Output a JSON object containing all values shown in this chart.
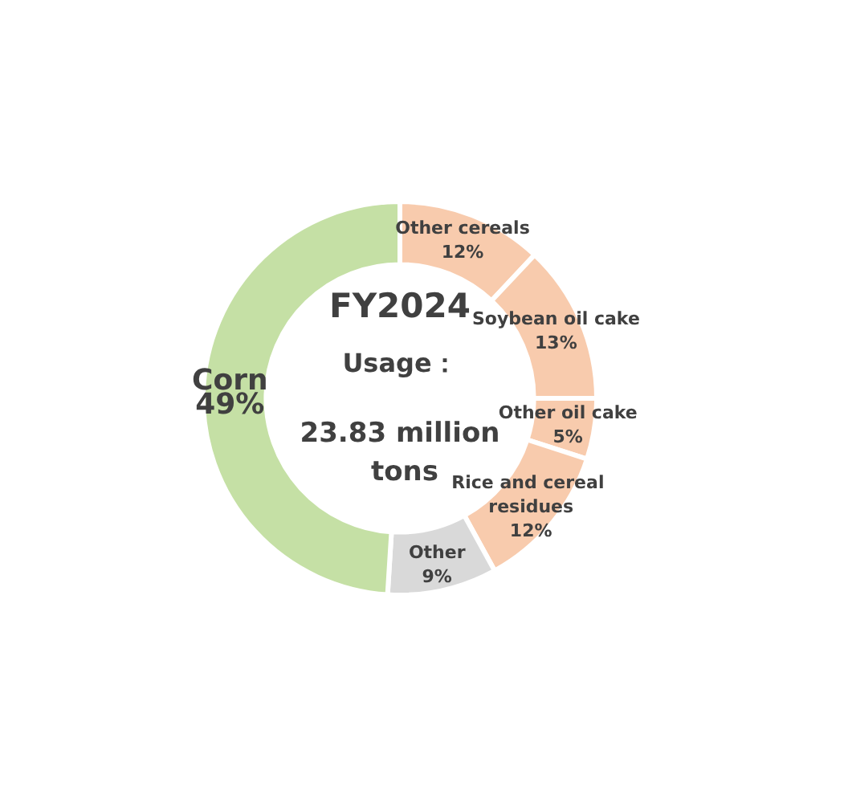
{
  "chart_data": {
    "type": "donut",
    "title": "FY2024",
    "subtitle": "Usage：",
    "annotations": [
      "23.83 million tons"
    ],
    "categories": [
      "Other cereals",
      "Soybean oil cake",
      "Other oil cake",
      "Rice and cereal residues",
      "Other",
      "Corn"
    ],
    "values": [
      12,
      13,
      5,
      12,
      9,
      49
    ],
    "value_labels": [
      "12%",
      "13%",
      "5%",
      "12%",
      "9%",
      "49%"
    ],
    "colors": [
      "#f8cbad",
      "#f8cbad",
      "#f8cbad",
      "#f8cbad",
      "#d9d9d9",
      "#c5e0a5"
    ],
    "legend": false
  }
}
